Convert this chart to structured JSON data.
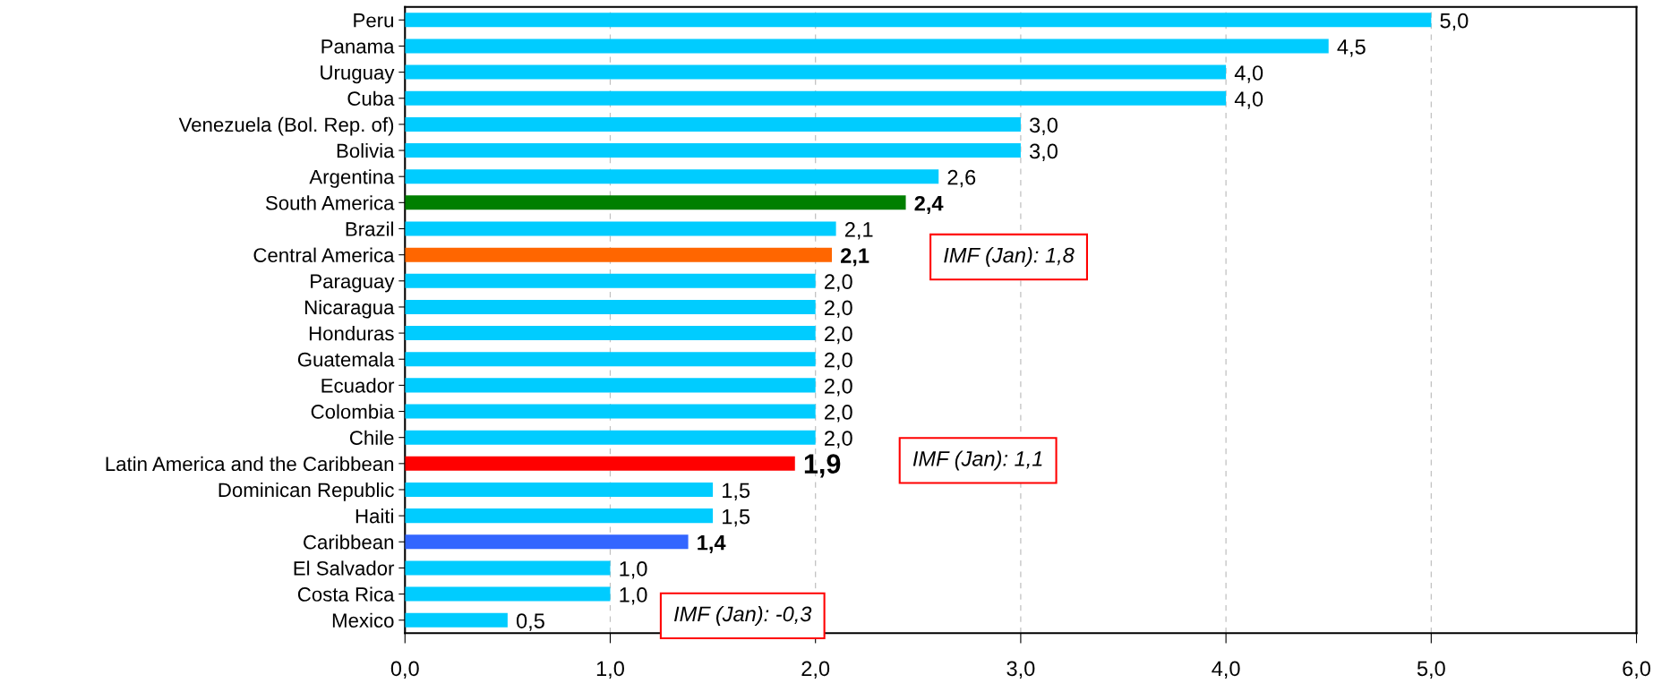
{
  "chart_data": {
    "type": "bar",
    "orientation": "horizontal",
    "categories": [
      "Peru",
      "Panama",
      "Uruguay",
      "Cuba",
      "Venezuela (Bol. Rep. of)",
      "Bolivia",
      "Argentina",
      "South America",
      "Brazil",
      "Central America",
      "Paraguay",
      "Nicaragua",
      "Honduras",
      "Guatemala",
      "Ecuador",
      "Colombia",
      "Chile",
      "Latin America and the Caribbean",
      "Dominican Republic",
      "Haiti",
      "Caribbean",
      "El Salvador",
      "Costa Rica",
      "Mexico"
    ],
    "values": [
      5.0,
      4.5,
      4.0,
      4.0,
      3.0,
      3.0,
      2.6,
      2.44,
      2.1,
      2.08,
      2.0,
      2.0,
      2.0,
      2.0,
      2.0,
      2.0,
      2.0,
      1.9,
      1.5,
      1.5,
      1.38,
      1.0,
      1.0,
      0.5
    ],
    "value_labels": [
      "5,0",
      "4,5",
      "4,0",
      "4,0",
      "3,0",
      "3,0",
      "2,6",
      "2,4",
      "2,1",
      "2,1",
      "2,0",
      "2,0",
      "2,0",
      "2,0",
      "2,0",
      "2,0",
      "2,0",
      "1,9",
      "1,5",
      "1,5",
      "1,4",
      "1,0",
      "1,0",
      "0,5"
    ],
    "colors": [
      "#00ccff",
      "#00ccff",
      "#00ccff",
      "#00ccff",
      "#00ccff",
      "#00ccff",
      "#00ccff",
      "#007f00",
      "#00ccff",
      "#ff6600",
      "#00ccff",
      "#00ccff",
      "#00ccff",
      "#00ccff",
      "#00ccff",
      "#00ccff",
      "#00ccff",
      "#ff0000",
      "#00ccff",
      "#00ccff",
      "#3366ff",
      "#00ccff",
      "#00ccff",
      "#00ccff"
    ],
    "xlim": [
      0,
      6
    ],
    "xticks": [
      {
        "value": 0,
        "label": "0,0"
      },
      {
        "value": 1,
        "label": "1,0"
      },
      {
        "value": 2,
        "label": "2,0"
      },
      {
        "value": 3,
        "label": "3,0"
      },
      {
        "value": 4,
        "label": "4,0"
      },
      {
        "value": 5,
        "label": "5,0"
      },
      {
        "value": 6,
        "label": "6,0"
      }
    ],
    "grid": "x",
    "annotations": [
      "IMF (Jan): 1,8",
      "IMF (Jan): 1,1",
      "IMF (Jan): -0,3"
    ]
  }
}
